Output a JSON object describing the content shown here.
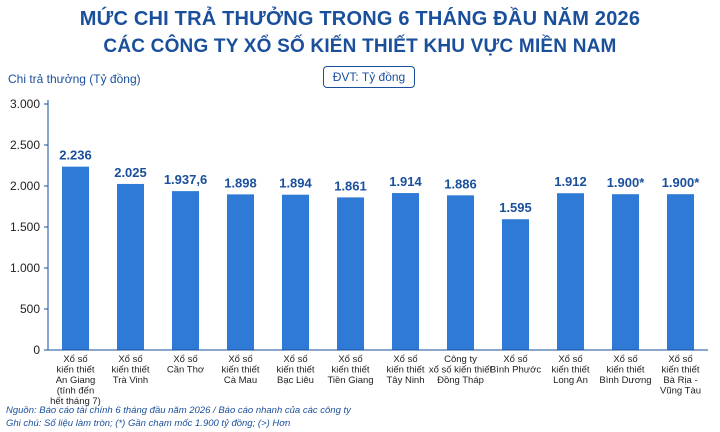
{
  "header": {
    "title_line1": "MỨC CHI TRẢ THƯỞNG TRONG 6 THÁNG ĐẦU NĂM 2026",
    "title_line2": "CÁC CÔNG TY XỔ SỐ KIẾN THIẾT KHU VỰC MIỀN NAM",
    "unit": "ĐVT: Tỷ đồng"
  },
  "footer": {
    "source": "Nguồn: Báo cáo tài chính 6 tháng đầu năm 2026 / Báo cáo nhanh của các công ty",
    "note": "Ghi chú: Số liệu làm tròn; (*) Gần chạm mốc 1.900 tỷ đồng; (>) Hơn"
  },
  "colors": {
    "bar": "#2f7ad6",
    "text": "#1a4f9c",
    "axis": "#1a4f9c"
  },
  "chart_data": {
    "type": "bar",
    "ylabel": "Chi trả thưởng (Tỷ đồng)",
    "xlabel": "",
    "ylim": [
      0,
      3000
    ],
    "yticks": [
      0,
      500,
      1000,
      1500,
      2000,
      2500,
      3000
    ],
    "ytick_labels": [
      "0",
      "500",
      "1.000",
      "1.500",
      "2.000",
      "2.500",
      "3.000"
    ],
    "grid": false,
    "categories": [
      [
        "Xổ số",
        "kiến thiết",
        "An Giang",
        "(tính đến",
        "hết tháng 7)"
      ],
      [
        "Xổ số",
        "kiến thiết",
        "Trà Vinh"
      ],
      [
        "Xổ số",
        "Cần Thơ"
      ],
      [
        "Xổ số",
        "kiến thiết",
        "Cà Mau"
      ],
      [
        "Xổ số",
        "kiến thiết",
        "Bạc Liêu"
      ],
      [
        "Xổ số",
        "kiến thiết",
        "Tiền Giang"
      ],
      [
        "Xổ số",
        "kiến thiết",
        "Tây Ninh"
      ],
      [
        "Công ty",
        "xổ số kiến thiết",
        "Đồng Tháp"
      ],
      [
        "Xổ số",
        "Bình Phước"
      ],
      [
        "Xổ số",
        "kiến thiết",
        "Long An"
      ],
      [
        "Xổ số",
        "kiến thiết",
        "Bình Dương"
      ],
      [
        "Xổ số",
        "kiến thiết",
        "Bà Rịa -",
        "Vũng Tàu"
      ]
    ],
    "values": [
      2236,
      2025,
      1937.6,
      1898,
      1894,
      1861,
      1914,
      1886,
      1595,
      1912,
      1900,
      1900
    ],
    "data_labels": [
      "2.236",
      "2.025",
      "1.937,6",
      "1.898",
      "1.894",
      "1.861",
      "1.914",
      "1.886",
      "1.595",
      "1.912",
      "1.900*",
      "1.900*"
    ]
  }
}
